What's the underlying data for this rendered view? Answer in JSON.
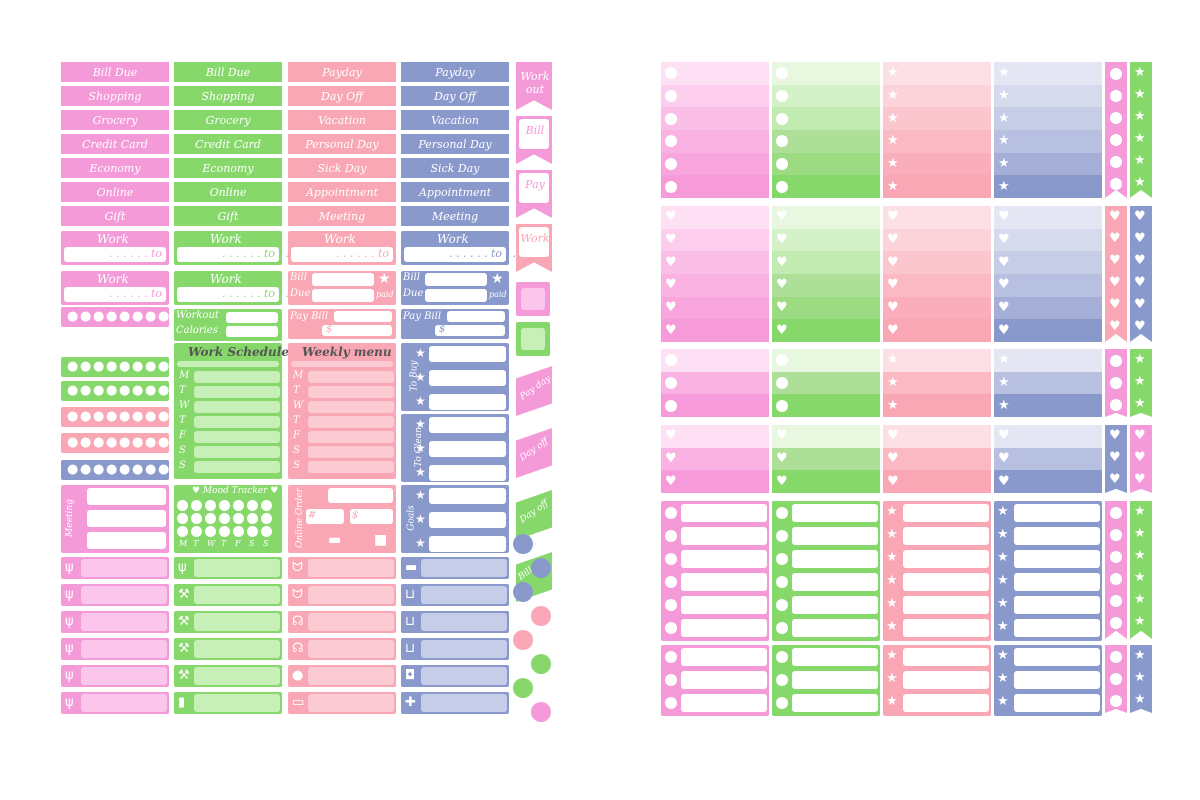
{
  "colors": {
    "pink": "#f59ad9",
    "pink_light": "#fbc6ec",
    "green": "#86d86a",
    "green_light": "#c8efb8",
    "coral": "#f9a7b4",
    "coral_light": "#fccad2",
    "blue": "#8a99cb",
    "blue_light": "#c6cde8"
  },
  "label_columns": [
    {
      "color": "pink",
      "labels": [
        "Bill Due",
        "Shopping",
        "Grocery",
        "Credit Card",
        "Economy",
        "Online",
        "Gift"
      ]
    },
    {
      "color": "green",
      "labels": [
        "Bill Due",
        "Shopping",
        "Grocery",
        "Credit Card",
        "Economy",
        "Online",
        "Gift"
      ]
    },
    {
      "color": "coral",
      "labels": [
        "Payday",
        "Day Off",
        "Vacation",
        "Personal Day",
        "Sick Day",
        "Appointment",
        "Meeting"
      ]
    },
    {
      "color": "blue",
      "labels": [
        "Payday",
        "Day Off",
        "Vacation",
        "Personal Day",
        "Sick Day",
        "Appointment",
        "Meeting"
      ]
    }
  ],
  "work_box": {
    "title": "Work",
    "to": "to"
  },
  "bill_due_box": {
    "bill": "Bill",
    "due": "Due",
    "paid": "paid"
  },
  "pay_bill_box": {
    "title": "Pay Bill",
    "currency": "$"
  },
  "workout_box": {
    "workout": "Workout",
    "calories": "Calories"
  },
  "work_schedule": {
    "title": "Work Schedule",
    "days": [
      "M",
      "T",
      "W",
      "T",
      "F",
      "S",
      "S"
    ]
  },
  "weekly_menu": {
    "title": "Weekly menu",
    "days": [
      "M",
      "T",
      "W",
      "T",
      "F",
      "S",
      "S"
    ]
  },
  "to_buy": "To Buy",
  "to_clean": "To Clean",
  "goals": "Goals",
  "meeting": "Meeting",
  "mood_tracker": {
    "title": "Mood Tracker",
    "days": [
      "M",
      "T",
      "W",
      "T",
      "F",
      "S",
      "S"
    ]
  },
  "online_order": {
    "title": "Online Order",
    "hash": "#",
    "currency": "$"
  },
  "side_flags": [
    {
      "text": "Work out",
      "color": "pink"
    },
    {
      "text": "Bill",
      "color": "pink"
    },
    {
      "text": "Pay",
      "color": "pink"
    },
    {
      "text": "Work",
      "color": "coral"
    }
  ],
  "side_slants": [
    {
      "text": "Pay day",
      "color": "pink"
    },
    {
      "text": "Day off",
      "color": "pink"
    },
    {
      "text": "Day off",
      "color": "green"
    },
    {
      "text": "Bill",
      "color": "green"
    }
  ],
  "icon_rows": {
    "pink": [
      "fork-knife-icon",
      "fork-knife-icon",
      "fork-knife-icon",
      "fork-knife-icon",
      "fork-knife-icon",
      "fork-knife-icon"
    ],
    "green": [
      "fork-knife-icon",
      "dumbbell-icon",
      "dumbbell-icon",
      "dumbbell-icon",
      "dumbbell-icon",
      "bottle-icon"
    ],
    "coral": [
      "tooth-icon",
      "tooth-icon",
      "stethoscope-icon",
      "stethoscope-icon",
      "piggy-bank-icon",
      "car-icon"
    ],
    "blue": [
      "truck-icon",
      "cart-icon",
      "cart-icon",
      "cart-icon",
      "cup-icon",
      "gift-icon"
    ]
  }
}
